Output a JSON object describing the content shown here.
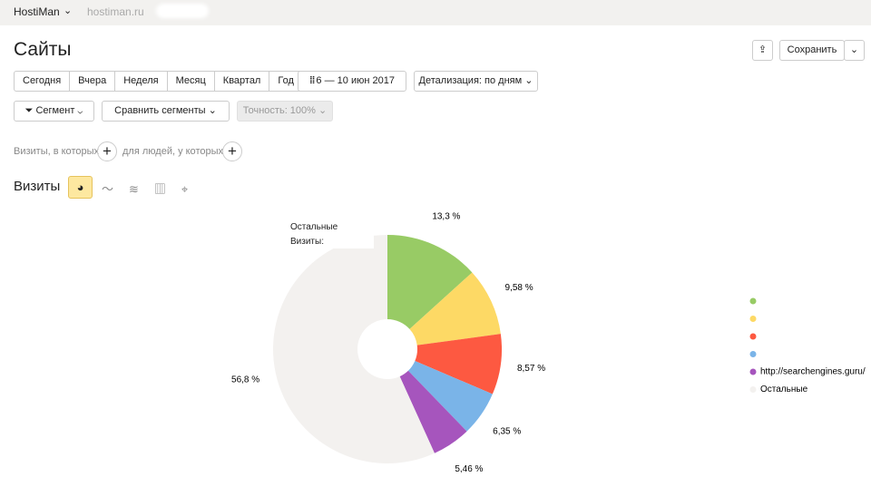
{
  "header": {
    "account": "HostiMan",
    "site": "hostiman.ru"
  },
  "page": {
    "title": "Сайты",
    "save": "Сохранить"
  },
  "periods": [
    "Сегодня",
    "Вчера",
    "Неделя",
    "Месяц",
    "Квартал",
    "Год"
  ],
  "date_range": "6 — 10 июн 2017",
  "detail": "Детализация: по дням",
  "segment": "Сегмент",
  "compare": "Сравнить сегменты",
  "accuracy": "Точность: 100%",
  "filters": {
    "visits": "Визиты, в которых",
    "people": "для людей, у которых"
  },
  "metric": "Визиты",
  "tooltip": {
    "name": "Остальные",
    "metric": "Визиты:"
  },
  "chart_data": {
    "type": "pie",
    "categories": [
      null,
      null,
      null,
      null,
      "http://searchengines.guru/",
      "Остальные"
    ],
    "values": [
      13.3,
      9.58,
      8.57,
      6.35,
      5.46,
      56.8
    ],
    "value_labels": [
      "13,3 %",
      "9,58 %",
      "8,57 %",
      "6,35 %",
      "5,46 %",
      "56,8 %"
    ],
    "colors": [
      "#98cb65",
      "#fdd965",
      "#fd5941",
      "#7ab4e8",
      "#a655bd",
      "#f3f1ef"
    ]
  }
}
